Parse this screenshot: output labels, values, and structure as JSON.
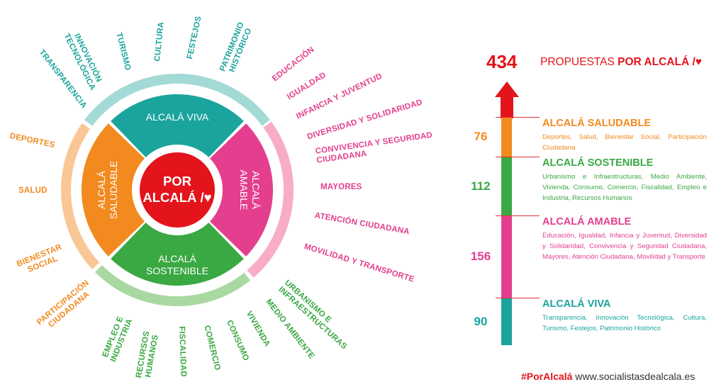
{
  "center": {
    "line1": "POR",
    "line2": "ALCALÁ /♥"
  },
  "segments": {
    "viva": {
      "label": "ALCALÁ VIVA"
    },
    "amable": {
      "line1": "ALCALÁ",
      "line2": "AMABLE"
    },
    "sostenible": {
      "line1": "ALCALÁ",
      "line2": "SOSTENIBLE"
    },
    "saludable": {
      "line1": "ALCALÁ",
      "line2": "SALUDABLE"
    }
  },
  "labels": {
    "viva": [
      "TRANSPARENCIA",
      "INNOVACIÓN",
      "TECNOLÓGICA",
      "TURISMO",
      "CULTURA",
      "FESTEJOS",
      "PATRIMONIO",
      "HISTÓRICO"
    ],
    "amable": [
      "EDUCACIÓN",
      "IGUALDAD",
      "INFANCIA Y JUVENTUD",
      "DIVERSIDAD Y SOLIDARIDAD",
      "CONVIVENCIA Y SEGURIDAD",
      "CIUDADANA",
      "MAYORES",
      "ATENCIÓN CIUDADANA",
      "MOVILIDAD Y TRANSPORTE"
    ],
    "sostenible": [
      "URBANISMO E",
      "INFRAESTRUCTURAS",
      "MEDIO AMBIENTE",
      "VIVIENDA",
      "CONSUMO",
      "COMERCIO",
      "FISCALIDAD",
      "RECURSOS",
      "HUMANOS",
      "EMPLEO E",
      "INDUSTRIA"
    ],
    "saludable": [
      "DEPORTES",
      "SALUD",
      "BIENESTAR",
      "SOCIAL",
      "PARTICIPACIÓN",
      "CIUDADANA"
    ]
  },
  "summary": {
    "total": "434",
    "label_pre": "PROPUESTAS ",
    "label_bold": "POR ALCALÁ /♥"
  },
  "categories": [
    {
      "id": "saludable",
      "count": "76",
      "value": 76,
      "title": "ALCALÁ SALUDABLE",
      "desc": "Deportes, Salud, Bienestar Social, Participación Ciudadana",
      "color": "#f28a1f"
    },
    {
      "id": "sostenible",
      "count": "112",
      "value": 112,
      "title": "ALCALÁ SOSTENIBLE",
      "desc": "Urbanismo e Infraestructuras, Medio Ambiente, Vivienda, Consumo, Comercio, Fiscalidad, Empleo e Industria, Recursos Humanos",
      "color": "#3aa843"
    },
    {
      "id": "amable",
      "count": "156",
      "value": 156,
      "title": "ALCALÁ AMABLE",
      "desc": "Educación, Igualdad, Infancia y Juventud, Diversidad y Solidaridad, Convivencia y Seguridad Ciudadana, Mayores, Atención Ciudadana, Movilidad y Transporte",
      "color": "#e43f8e"
    },
    {
      "id": "viva",
      "count": "90",
      "value": 90,
      "title": "ALCALÁ VIVA",
      "desc": "Transparencia, Innovación Tecnológica, Cultura, Turismo, Festejos, Patrimonio Histórico",
      "color": "#1ba49e"
    }
  ],
  "colors": {
    "red": "#e3141b",
    "teal": "#1ba49e",
    "pink": "#e43f8e",
    "green": "#3aa843",
    "orange": "#f28a1f"
  },
  "footer": {
    "hashtag": "#PorAlcalá",
    "site": " www.socialistasdealcala.es"
  }
}
